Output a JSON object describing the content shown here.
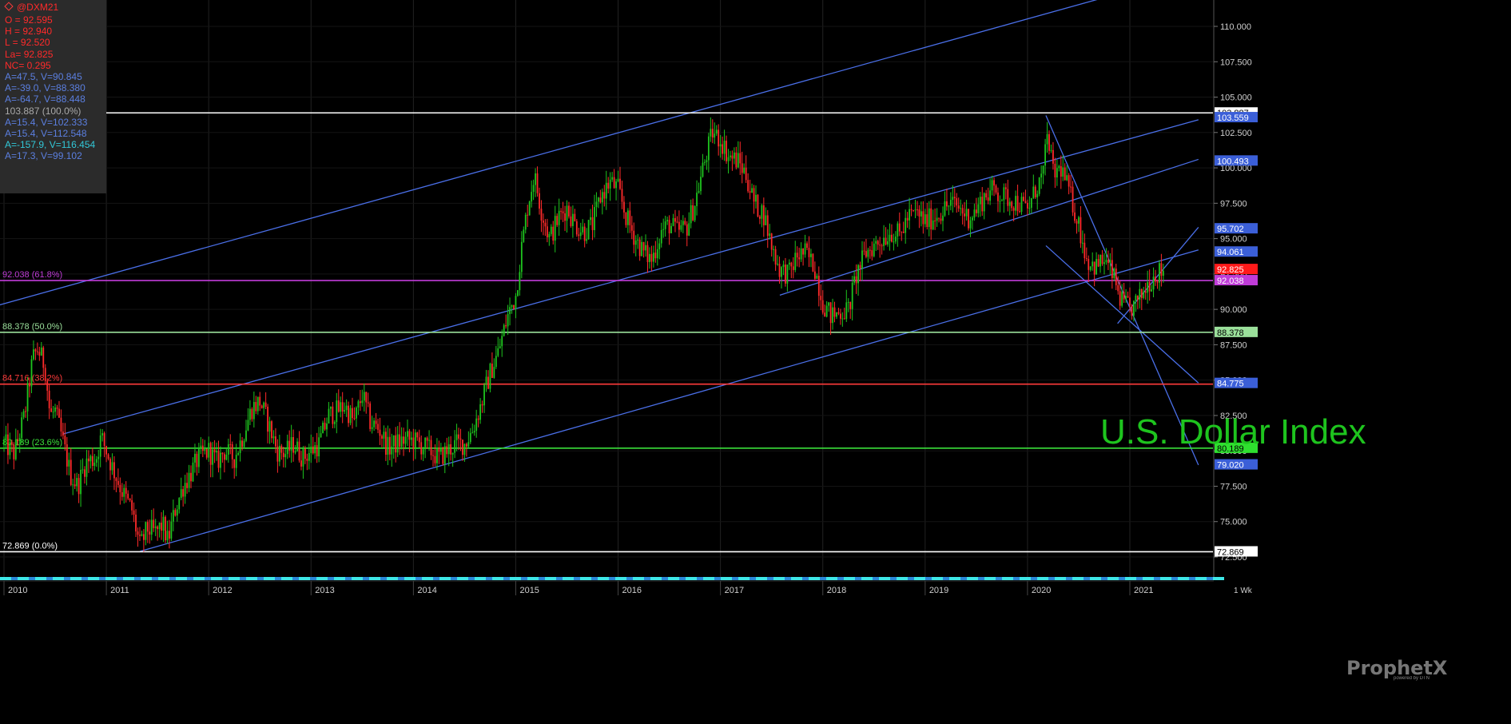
{
  "info_panel": {
    "symbol": "@DXM21",
    "lines": [
      {
        "text": "O = 92.595",
        "color": "#ff2a2a"
      },
      {
        "text": "H = 92.940",
        "color": "#ff2a2a"
      },
      {
        "text": "L = 92.520",
        "color": "#ff2a2a"
      },
      {
        "text": "La= 92.825",
        "color": "#ff2a2a"
      },
      {
        "text": "NC= 0.295",
        "color": "#ff2a2a"
      },
      {
        "text": "A=47.5, V=90.845",
        "color": "#5b7fe0"
      },
      {
        "text": "A=-39.0, V=88.380",
        "color": "#5b7fe0"
      },
      {
        "text": "A=-64.7, V=88.448",
        "color": "#5b7fe0"
      },
      {
        "text": "103.887 (100.0%)",
        "color": "#a9a9a9"
      },
      {
        "text": "A=15.4, V=102.333",
        "color": "#5b7fe0"
      },
      {
        "text": "A=15.4, V=112.548",
        "color": "#5b7fe0"
      },
      {
        "text": "A=-157.9, V=116.454",
        "color": "#32c8d8"
      },
      {
        "text": "A=17.3, V=99.102",
        "color": "#5b7fe0"
      }
    ]
  },
  "title_text": "U.S. Dollar Index",
  "watermark": {
    "brand": "ProphetX",
    "sub": "powered by DTN"
  },
  "chart_data": {
    "type": "candlestick",
    "symbol": "@DXM21",
    "interval_label": "1 Wk",
    "ylim": [
      71.0,
      112.2
    ],
    "y_ticks": [
      72.5,
      75.0,
      77.5,
      80.0,
      82.5,
      85.0,
      87.5,
      90.0,
      92.5,
      95.0,
      97.5,
      100.0,
      102.5,
      105.0,
      107.5,
      110.0
    ],
    "y_tick_labels": [
      "72.500",
      "75.000",
      "77.500",
      "80.000",
      "82.500",
      "85.000",
      "87.500",
      "90.000",
      "92.500",
      "95.000",
      "97.500",
      "100.000",
      "102.500",
      "105.000",
      "107.500",
      "110.000"
    ],
    "x_tick_labels": [
      "2010",
      "2011",
      "2012",
      "2013",
      "2014",
      "2015",
      "2016",
      "2017",
      "2018",
      "2019",
      "2020",
      "2021"
    ],
    "x_tick_years": [
      2010.0,
      2011.0,
      2012.0,
      2013.0,
      2014.0,
      2015.0,
      2016.0,
      2017.0,
      2018.0,
      2019.0,
      2020.0,
      2021.0
    ],
    "xlim": [
      2009.95,
      2021.67
    ],
    "up_color": "#1ec41e",
    "down_color": "#ff2a2a",
    "price_path": [
      [
        2010.0,
        80.5
      ],
      [
        2010.1,
        79.8
      ],
      [
        2010.2,
        82.5
      ],
      [
        2010.28,
        86.5
      ],
      [
        2010.33,
        87.2
      ],
      [
        2010.4,
        86.0
      ],
      [
        2010.45,
        82.5
      ],
      [
        2010.5,
        82.8
      ],
      [
        2010.58,
        80.5
      ],
      [
        2010.65,
        78.3
      ],
      [
        2010.72,
        77.5
      ],
      [
        2010.8,
        79.2
      ],
      [
        2010.9,
        79.5
      ],
      [
        2010.95,
        81.0
      ],
      [
        2011.05,
        79.0
      ],
      [
        2011.15,
        77.2
      ],
      [
        2011.25,
        75.8
      ],
      [
        2011.33,
        73.2
      ],
      [
        2011.4,
        74.5
      ],
      [
        2011.48,
        74.2
      ],
      [
        2011.55,
        74.8
      ],
      [
        2011.6,
        73.6
      ],
      [
        2011.67,
        75.8
      ],
      [
        2011.75,
        77.5
      ],
      [
        2011.83,
        78.5
      ],
      [
        2011.9,
        79.5
      ],
      [
        2012.0,
        80.0
      ],
      [
        2012.08,
        79.2
      ],
      [
        2012.15,
        80.0
      ],
      [
        2012.25,
        79.5
      ],
      [
        2012.33,
        81.0
      ],
      [
        2012.42,
        83.0
      ],
      [
        2012.5,
        83.5
      ],
      [
        2012.58,
        82.0
      ],
      [
        2012.67,
        80.0
      ],
      [
        2012.75,
        79.8
      ],
      [
        2012.83,
        80.5
      ],
      [
        2012.92,
        79.5
      ],
      [
        2013.0,
        80.0
      ],
      [
        2013.08,
        80.5
      ],
      [
        2013.17,
        82.5
      ],
      [
        2013.25,
        82.8
      ],
      [
        2013.33,
        83.2
      ],
      [
        2013.42,
        82.0
      ],
      [
        2013.5,
        84.0
      ],
      [
        2013.58,
        82.0
      ],
      [
        2013.67,
        81.5
      ],
      [
        2013.75,
        80.2
      ],
      [
        2013.83,
        80.5
      ],
      [
        2013.92,
        80.8
      ],
      [
        2014.0,
        80.7
      ],
      [
        2014.08,
        80.4
      ],
      [
        2014.17,
        80.0
      ],
      [
        2014.25,
        79.5
      ],
      [
        2014.33,
        80.0
      ],
      [
        2014.42,
        80.5
      ],
      [
        2014.5,
        80.5
      ],
      [
        2014.58,
        81.5
      ],
      [
        2014.67,
        83.5
      ],
      [
        2014.75,
        85.5
      ],
      [
        2014.83,
        87.0
      ],
      [
        2014.92,
        89.5
      ],
      [
        2015.0,
        91.0
      ],
      [
        2015.05,
        94.0
      ],
      [
        2015.12,
        97.5
      ],
      [
        2015.18,
        99.5
      ],
      [
        2015.25,
        97.0
      ],
      [
        2015.33,
        95.0
      ],
      [
        2015.42,
        96.5
      ],
      [
        2015.5,
        97.2
      ],
      [
        2015.58,
        96.0
      ],
      [
        2015.67,
        95.5
      ],
      [
        2015.75,
        96.0
      ],
      [
        2015.83,
        98.0
      ],
      [
        2015.92,
        99.0
      ],
      [
        2016.0,
        98.5
      ],
      [
        2016.08,
        96.5
      ],
      [
        2016.17,
        95.0
      ],
      [
        2016.25,
        94.0
      ],
      [
        2016.33,
        93.5
      ],
      [
        2016.42,
        95.5
      ],
      [
        2016.5,
        96.0
      ],
      [
        2016.58,
        95.5
      ],
      [
        2016.67,
        95.8
      ],
      [
        2016.75,
        97.5
      ],
      [
        2016.83,
        100.0
      ],
      [
        2016.92,
        102.5
      ],
      [
        2017.0,
        102.0
      ],
      [
        2017.08,
        100.8
      ],
      [
        2017.17,
        100.5
      ],
      [
        2017.25,
        99.5
      ],
      [
        2017.33,
        97.5
      ],
      [
        2017.42,
        96.8
      ],
      [
        2017.5,
        94.5
      ],
      [
        2017.58,
        92.8
      ],
      [
        2017.67,
        92.5
      ],
      [
        2017.75,
        93.8
      ],
      [
        2017.83,
        94.0
      ],
      [
        2017.92,
        93.0
      ],
      [
        2018.0,
        90.5
      ],
      [
        2018.08,
        89.5
      ],
      [
        2018.17,
        89.8
      ],
      [
        2018.25,
        90.0
      ],
      [
        2018.33,
        92.5
      ],
      [
        2018.42,
        94.0
      ],
      [
        2018.5,
        94.5
      ],
      [
        2018.58,
        95.0
      ],
      [
        2018.67,
        95.5
      ],
      [
        2018.75,
        95.2
      ],
      [
        2018.83,
        96.5
      ],
      [
        2018.92,
        96.8
      ],
      [
        2019.0,
        96.2
      ],
      [
        2019.08,
        96.5
      ],
      [
        2019.17,
        97.0
      ],
      [
        2019.25,
        97.5
      ],
      [
        2019.33,
        97.2
      ],
      [
        2019.42,
        96.5
      ],
      [
        2019.5,
        97.0
      ],
      [
        2019.58,
        98.0
      ],
      [
        2019.67,
        98.5
      ],
      [
        2019.75,
        98.0
      ],
      [
        2019.83,
        97.8
      ],
      [
        2019.92,
        97.5
      ],
      [
        2020.0,
        97.0
      ],
      [
        2020.08,
        98.5
      ],
      [
        2020.15,
        99.5
      ],
      [
        2020.2,
        102.5
      ],
      [
        2020.25,
        99.5
      ],
      [
        2020.33,
        100.0
      ],
      [
        2020.42,
        98.0
      ],
      [
        2020.5,
        96.0
      ],
      [
        2020.58,
        93.5
      ],
      [
        2020.67,
        93.0
      ],
      [
        2020.75,
        93.5
      ],
      [
        2020.83,
        92.5
      ],
      [
        2020.92,
        90.5
      ],
      [
        2021.0,
        90.0
      ],
      [
        2021.08,
        90.5
      ],
      [
        2021.17,
        91.8
      ],
      [
        2021.25,
        92.5
      ],
      [
        2021.33,
        92.8
      ]
    ],
    "fib_levels": [
      {
        "price": 103.887,
        "label": "103.887 (100.0%)",
        "color": "#ffffff"
      },
      {
        "price": 92.038,
        "label": "92.038 (61.8%)",
        "color": "#c03cd8"
      },
      {
        "price": 88.378,
        "label": "88.378 (50.0%)",
        "color": "#9be09b"
      },
      {
        "price": 84.716,
        "label": "84.716 (38.2%)",
        "color": "#ff3b3b"
      },
      {
        "price": 80.189,
        "label": "80.189 (23.6%)",
        "color": "#3ae03a"
      },
      {
        "price": 72.869,
        "label": "72.869 (0.0%)",
        "color": "#ffffff"
      }
    ],
    "trend_lines": [
      {
        "from": [
          2009.95,
          90.3
        ],
        "to": [
          2020.93,
          112.4
        ]
      },
      {
        "from": [
          2010.58,
          81.2
        ],
        "to": [
          2021.67,
          103.4
        ]
      },
      {
        "from": [
          2011.33,
          72.9
        ],
        "to": [
          2021.67,
          94.2
        ]
      },
      {
        "from": [
          2017.58,
          91.0
        ],
        "to": [
          2021.67,
          100.6
        ]
      },
      {
        "from": [
          2020.18,
          103.7
        ],
        "to": [
          2021.67,
          79.0
        ]
      },
      {
        "from": [
          2020.18,
          94.5
        ],
        "to": [
          2021.67,
          84.8
        ]
      },
      {
        "from": [
          2020.88,
          89.0
        ],
        "to": [
          2021.67,
          95.8
        ]
      }
    ],
    "price_labels": [
      {
        "price": 103.887,
        "text": "103.887",
        "bg": "#ffffff",
        "fg": "#000000"
      },
      {
        "price": 103.559,
        "text": "103.559",
        "bg": "#3b5fd8",
        "fg": "#ffffff"
      },
      {
        "price": 100.493,
        "text": "100.493",
        "bg": "#3b5fd8",
        "fg": "#ffffff"
      },
      {
        "price": 95.702,
        "text": "95.702",
        "bg": "#3b5fd8",
        "fg": "#ffffff"
      },
      {
        "price": 94.061,
        "text": "94.061",
        "bg": "#3b5fd8",
        "fg": "#ffffff"
      },
      {
        "price": 92.825,
        "text": "92.825",
        "bg": "#ff1a1a",
        "fg": "#ffffff"
      },
      {
        "price": 92.038,
        "text": "92.038",
        "bg": "#c03cd8",
        "fg": "#ffffff"
      },
      {
        "price": 88.378,
        "text": "88.378",
        "bg": "#9be09b",
        "fg": "#000000"
      },
      {
        "price": 84.775,
        "text": "84.775",
        "bg": "#3b5fd8",
        "fg": "#ffffff"
      },
      {
        "price": 80.189,
        "text": "80.189",
        "bg": "#2fe02f",
        "fg": "#000000"
      },
      {
        "price": 79.02,
        "text": "79.020",
        "bg": "#3b5fd8",
        "fg": "#ffffff"
      },
      {
        "price": 72.869,
        "text": "72.869",
        "bg": "#ffffff",
        "fg": "#000000"
      }
    ]
  }
}
